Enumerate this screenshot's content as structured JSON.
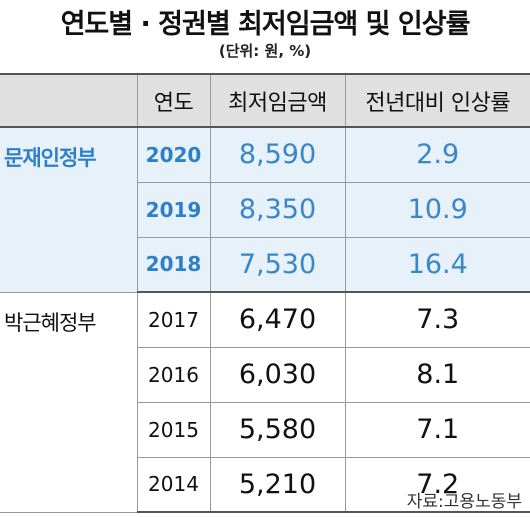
{
  "title": "연도별 · 정권별 최저임금액 및 인상률",
  "unit": "(단위: 원, %)",
  "table": {
    "headers": [
      "",
      "연도",
      "최저임금액",
      "전년대비 인상률"
    ],
    "groups": [
      {
        "name": "문재인정부",
        "highlight_color": "#2f7fc7",
        "background": "#e6f1f9",
        "rows": [
          {
            "year": "2020",
            "amount": "8,590",
            "rate": "2.9"
          },
          {
            "year": "2019",
            "amount": "8,350",
            "rate": "10.9"
          },
          {
            "year": "2018",
            "amount": "7,530",
            "rate": "16.4"
          }
        ]
      },
      {
        "name": "박근혜정부",
        "rows": [
          {
            "year": "2017",
            "amount": "6,470",
            "rate": "7.3"
          },
          {
            "year": "2016",
            "amount": "6,030",
            "rate": "8.1"
          },
          {
            "year": "2015",
            "amount": "5,580",
            "rate": "7.1"
          },
          {
            "year": "2014",
            "amount": "5,210",
            "rate": "7.2"
          }
        ]
      }
    ]
  },
  "source": "자료:고용노동부"
}
